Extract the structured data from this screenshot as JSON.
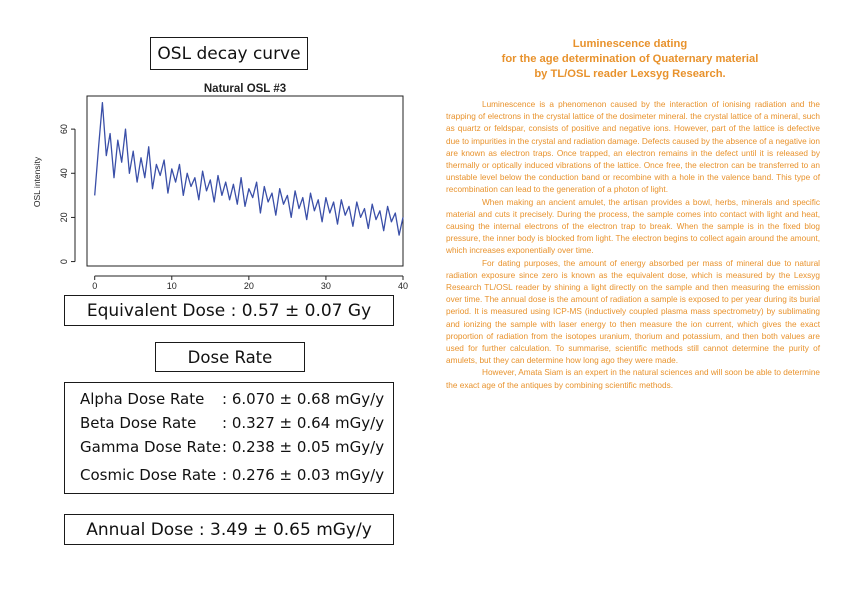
{
  "left_panel": {
    "decay_title": "OSL decay curve",
    "equivalent_dose": "Equivalent Dose : 0.57 ± 0.07 Gy",
    "dose_rate_title": "Dose Rate",
    "rates": [
      {
        "label": "Alpha Dose Rate",
        "value": ": 6.070 ± 0.68 mGy/y"
      },
      {
        "label": "Beta Dose Rate",
        "value": ": 0.327 ± 0.64 mGy/y"
      },
      {
        "label": "Gamma Dose Rate",
        "value": ": 0.238 ± 0.05 mGy/y"
      },
      {
        "label": "Cosmic Dose Rate",
        "value": ": 0.276 ± 0.03 mGy/y"
      }
    ],
    "annual_dose": "Annual Dose : 3.49 ± 0.65 mGy/y"
  },
  "chart_data": {
    "type": "line",
    "title": "Natural OSL #3",
    "xlabel": "",
    "ylabel": "OSL intensity",
    "xlim": [
      -1,
      40
    ],
    "ylim": [
      -2,
      75
    ],
    "x_ticks": [
      0,
      10,
      20,
      30,
      40
    ],
    "y_ticks": [
      0,
      20,
      40,
      60
    ],
    "grid": false,
    "series": [
      {
        "color": "#3a4fa8",
        "x": [
          0,
          0.5,
          1,
          1.5,
          2,
          2.5,
          3,
          3.5,
          4,
          4.5,
          5,
          5.5,
          6,
          6.5,
          7,
          7.5,
          8,
          8.5,
          9,
          9.5,
          10,
          10.5,
          11,
          11.5,
          12,
          12.5,
          13,
          13.5,
          14,
          14.5,
          15,
          15.5,
          16,
          16.5,
          17,
          17.5,
          18,
          18.5,
          19,
          19.5,
          20,
          20.5,
          21,
          21.5,
          22,
          22.5,
          23,
          23.5,
          24,
          24.5,
          25,
          25.5,
          26,
          26.5,
          27,
          27.5,
          28,
          28.5,
          29,
          29.5,
          30,
          30.5,
          31,
          31.5,
          32,
          32.5,
          33,
          33.5,
          34,
          34.5,
          35,
          35.5,
          36,
          36.5,
          37,
          37.5,
          38,
          38.5,
          39,
          39.5,
          40
        ],
        "y": [
          30,
          52,
          72,
          48,
          58,
          38,
          55,
          45,
          60,
          40,
          50,
          36,
          47,
          38,
          52,
          33,
          44,
          39,
          46,
          31,
          42,
          36,
          44,
          30,
          40,
          34,
          38,
          28,
          41,
          32,
          37,
          27,
          39,
          30,
          36,
          28,
          35,
          26,
          38,
          25,
          33,
          29,
          36,
          22,
          34,
          27,
          31,
          21,
          33,
          26,
          30,
          20,
          32,
          24,
          29,
          19,
          31,
          23,
          28,
          18,
          29,
          22,
          27,
          17,
          28,
          21,
          25,
          16,
          27,
          20,
          24,
          15,
          26,
          19,
          23,
          14,
          25,
          18,
          22,
          12,
          20
        ]
      }
    ]
  },
  "right_panel": {
    "title_line1": "Luminescence dating",
    "title_line2": "for the age determination of Quaternary material",
    "title_line3": "by TL/OSL reader Lexsyg Research.",
    "paragraphs": [
      "Luminescence is a phenomenon caused by the interaction of ionising radiation and the trapping of electrons in the crystal lattice of the dosimeter mineral. the crystal lattice of a mineral, such as quartz or feldspar, consists of positive and negative ions. However, part of the lattice is defective due to impurities in the crystal and radiation damage. Defects caused by the absence of a negative ion are known as electron traps. Once trapped, an electron remains in the defect until it is released by thermally or optically induced vibrations of the lattice. Once free, the electron can be transferred to an unstable level below the conduction band or recombine with a hole in the valence band. This type of recombination can lead to the generation of a photon of light.",
      "When making an ancient amulet, the artisan provides a bowl, herbs, minerals and specific material and cuts it precisely. During the process, the sample comes into contact with light and heat, causing the internal electrons of the electron trap to break. When the sample is in the fixed blog pressure, the inner body is blocked from light. The electron begins to collect again around the amount, which increases exponentially over time.",
      "For dating purposes, the amount of energy absorbed per mass of mineral due to natural radiation exposure since zero is known as the equivalent dose, which is measured by the Lexsyg Research TL/OSL reader by shining a light directly on the sample and then measuring the emission over time. The annual dose is the amount of radiation a sample is exposed to per year during its burial period. It is measured using ICP-MS (inductively coupled plasma mass spectrometry) by sublimating and ionizing the sample with laser energy to then measure the ion current, which gives the exact proportion of radiation from the isotopes uranium, thorium and potassium, and then both values are used for further calculation. To summarise, scientific methods still cannot determine the purity of amulets, but they can determine how long ago they were made.",
      "However, Amata Siam is an expert in the natural sciences and will soon be able to determine the exact age of the antiques by combining scientific methods."
    ]
  }
}
